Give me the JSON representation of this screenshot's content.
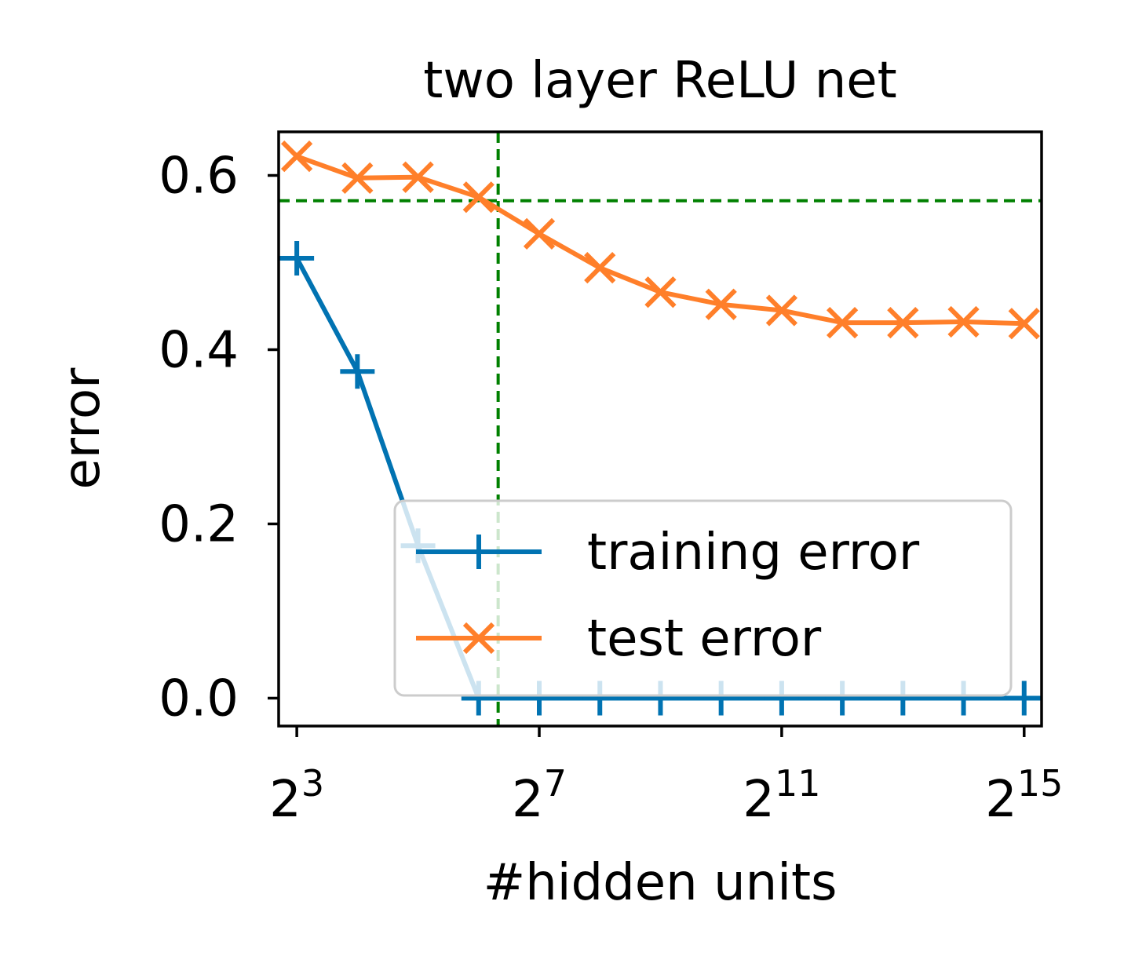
{
  "chart_data": {
    "type": "line",
    "title": "two layer ReLU net",
    "xlabel": "#hidden units",
    "ylabel": "error",
    "x_scale": "log2",
    "x": [
      8,
      16,
      32,
      64,
      128,
      256,
      512,
      1024,
      2048,
      4096,
      8192,
      16384,
      32768
    ],
    "xlim": [
      6.5,
      40000
    ],
    "ylim": [
      -0.032,
      0.65
    ],
    "x_ticks": [
      {
        "value": 8,
        "base": "2",
        "exp": "3"
      },
      {
        "value": 128,
        "base": "2",
        "exp": "7"
      },
      {
        "value": 2048,
        "base": "2",
        "exp": "11"
      },
      {
        "value": 32768,
        "base": "2",
        "exp": "15"
      }
    ],
    "y_ticks": [
      {
        "value": 0.0,
        "label": "0.0"
      },
      {
        "value": 0.2,
        "label": "0.2"
      },
      {
        "value": 0.4,
        "label": "0.4"
      },
      {
        "value": 0.6,
        "label": "0.6"
      }
    ],
    "series": [
      {
        "name": "training error",
        "color": "#0173b2",
        "marker": "plus",
        "x": [
          8,
          16,
          32,
          64,
          128,
          256,
          512,
          1024,
          2048,
          4096,
          8192,
          16384,
          32768
        ],
        "values": [
          0.505,
          0.375,
          0.175,
          0.0,
          0.0,
          0.0,
          0.0,
          0.0,
          0.0,
          0.0,
          0.0,
          0.0,
          0.0
        ]
      },
      {
        "name": "test error",
        "color": "#ff7f2a",
        "marker": "x",
        "x": [
          8,
          16,
          32,
          64,
          128,
          256,
          512,
          1024,
          2048,
          4096,
          8192,
          16384,
          32768
        ],
        "values": [
          0.622,
          0.597,
          0.598,
          0.575,
          0.533,
          0.494,
          0.466,
          0.452,
          0.445,
          0.431,
          0.431,
          0.432,
          0.43
        ]
      }
    ],
    "reference_lines": {
      "color": "#008000",
      "style": "dashed",
      "vertical_x": 80,
      "horizontal_y": 0.571
    },
    "legend": {
      "position": "lower-right"
    },
    "grid": false
  }
}
